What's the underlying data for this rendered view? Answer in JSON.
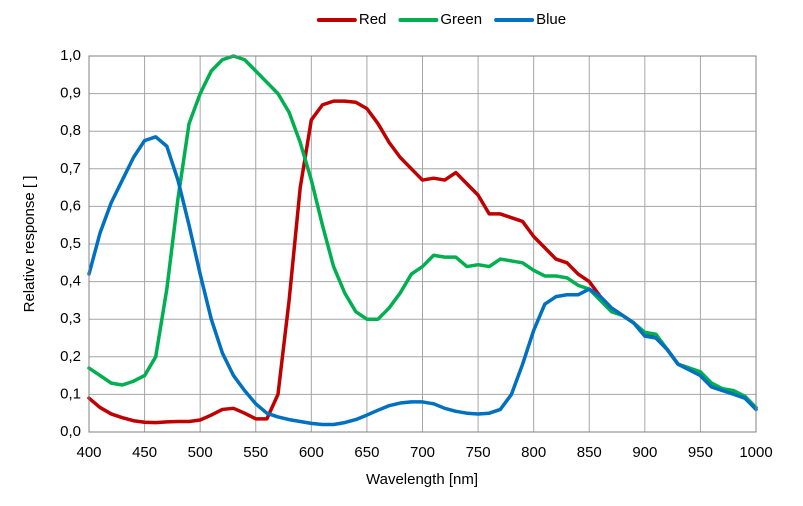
{
  "chart_data": {
    "type": "line",
    "xlabel": "Wavelength [nm]",
    "ylabel": "Relative response [ ]",
    "x": [
      400,
      410,
      420,
      430,
      440,
      450,
      460,
      470,
      480,
      490,
      500,
      510,
      520,
      530,
      540,
      550,
      560,
      570,
      580,
      590,
      600,
      610,
      620,
      630,
      640,
      650,
      660,
      670,
      680,
      690,
      700,
      710,
      720,
      730,
      740,
      750,
      760,
      770,
      780,
      790,
      800,
      810,
      820,
      830,
      840,
      850,
      860,
      870,
      880,
      890,
      900,
      910,
      920,
      930,
      940,
      950,
      960,
      970,
      980,
      990,
      1000
    ],
    "series": [
      {
        "name": "Red",
        "color": "#c00000",
        "values": [
          0.09,
          0.065,
          0.048,
          0.038,
          0.03,
          0.026,
          0.025,
          0.027,
          0.028,
          0.028,
          0.032,
          0.045,
          0.06,
          0.063,
          0.05,
          0.035,
          0.035,
          0.1,
          0.35,
          0.65,
          0.83,
          0.87,
          0.88,
          0.88,
          0.877,
          0.86,
          0.82,
          0.77,
          0.73,
          0.7,
          0.67,
          0.675,
          0.67,
          0.69,
          0.66,
          0.63,
          0.58,
          0.58,
          0.57,
          0.56,
          0.52,
          0.49,
          0.46,
          0.45,
          0.42,
          0.4,
          0.36,
          0.33,
          0.31,
          0.29,
          0.26,
          0.25,
          0.22,
          0.18,
          0.17,
          0.15,
          0.12,
          0.11,
          0.105,
          0.09,
          0.065
        ]
      },
      {
        "name": "Green",
        "color": "#00b050",
        "values": [
          0.17,
          0.15,
          0.13,
          0.125,
          0.135,
          0.15,
          0.2,
          0.38,
          0.62,
          0.82,
          0.9,
          0.96,
          0.99,
          1.0,
          0.99,
          0.96,
          0.93,
          0.9,
          0.85,
          0.77,
          0.67,
          0.55,
          0.44,
          0.37,
          0.32,
          0.3,
          0.3,
          0.33,
          0.37,
          0.42,
          0.44,
          0.47,
          0.465,
          0.465,
          0.44,
          0.445,
          0.44,
          0.46,
          0.455,
          0.45,
          0.43,
          0.415,
          0.415,
          0.41,
          0.39,
          0.38,
          0.35,
          0.32,
          0.31,
          0.29,
          0.265,
          0.26,
          0.22,
          0.18,
          0.17,
          0.16,
          0.13,
          0.115,
          0.11,
          0.095,
          0.065
        ]
      },
      {
        "name": "Blue",
        "color": "#0070c0",
        "values": [
          0.42,
          0.53,
          0.61,
          0.67,
          0.73,
          0.775,
          0.785,
          0.76,
          0.67,
          0.55,
          0.42,
          0.3,
          0.21,
          0.15,
          0.11,
          0.075,
          0.05,
          0.04,
          0.033,
          0.028,
          0.023,
          0.02,
          0.02,
          0.025,
          0.033,
          0.045,
          0.058,
          0.07,
          0.077,
          0.08,
          0.08,
          0.075,
          0.063,
          0.055,
          0.05,
          0.048,
          0.05,
          0.06,
          0.1,
          0.18,
          0.27,
          0.34,
          0.36,
          0.365,
          0.365,
          0.38,
          0.36,
          0.33,
          0.31,
          0.29,
          0.255,
          0.25,
          0.22,
          0.18,
          0.165,
          0.15,
          0.12,
          0.11,
          0.1,
          0.09,
          0.06
        ]
      }
    ],
    "xlim": [
      400,
      1000
    ],
    "xticks": [
      400,
      450,
      500,
      550,
      600,
      650,
      700,
      750,
      800,
      850,
      900,
      950,
      1000
    ],
    "ylim": [
      0,
      1
    ],
    "yticks": [
      {
        "value": 0,
        "label": "0,0"
      },
      {
        "value": 0.1,
        "label": "0,1"
      },
      {
        "value": 0.2,
        "label": "0,2"
      },
      {
        "value": 0.3,
        "label": "0,3"
      },
      {
        "value": 0.4,
        "label": "0,4"
      },
      {
        "value": 0.5,
        "label": "0,5"
      },
      {
        "value": 0.6,
        "label": "0,6"
      },
      {
        "value": 0.7,
        "label": "0,7"
      },
      {
        "value": 0.8,
        "label": "0,8"
      },
      {
        "value": 0.9,
        "label": "0,9"
      },
      {
        "value": 1,
        "label": "1,0"
      }
    ],
    "grid": true,
    "legend": "top"
  }
}
